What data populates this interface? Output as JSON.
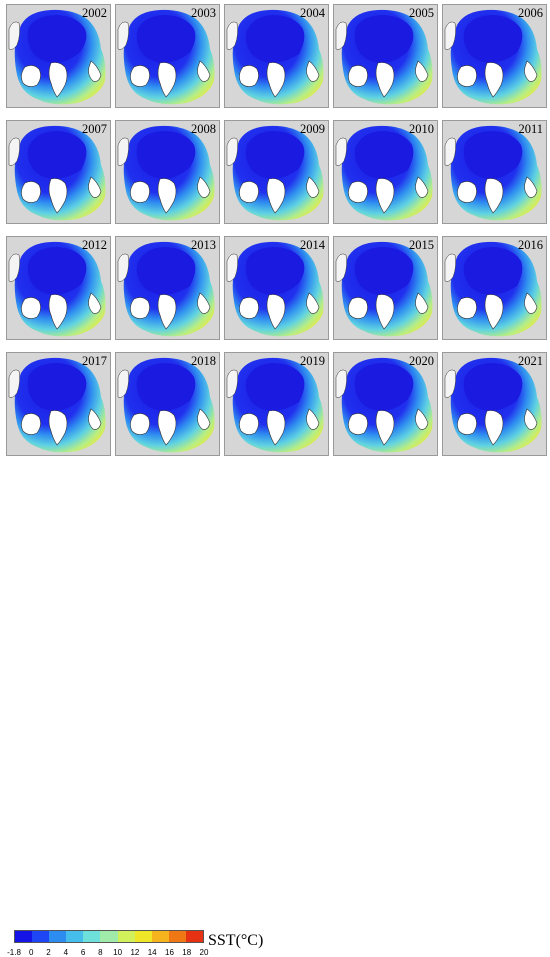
{
  "panels": [
    {
      "year": "2002"
    },
    {
      "year": "2003"
    },
    {
      "year": "2004"
    },
    {
      "year": "2005"
    },
    {
      "year": "2006"
    },
    {
      "year": "2007"
    },
    {
      "year": "2008"
    },
    {
      "year": "2009"
    },
    {
      "year": "2010"
    },
    {
      "year": "2011"
    },
    {
      "year": "2012"
    },
    {
      "year": "2013"
    },
    {
      "year": "2014"
    },
    {
      "year": "2015"
    },
    {
      "year": "2016"
    },
    {
      "year": "2017"
    },
    {
      "year": "2018"
    },
    {
      "year": "2019"
    },
    {
      "year": "2020"
    },
    {
      "year": "2021"
    }
  ],
  "legend": {
    "label": "SST(°C)",
    "ticks": [
      "-1.8",
      "0",
      "2",
      "4",
      "6",
      "8",
      "10",
      "12",
      "14",
      "16",
      "18",
      "20"
    ],
    "colors": [
      "#1414e6",
      "#1e46f5",
      "#2d8cf0",
      "#46beeb",
      "#6ee0dc",
      "#a0ebaa",
      "#d2f05a",
      "#f0e628",
      "#f5b41e",
      "#f07814",
      "#e63212"
    ]
  },
  "colors": {
    "land": "#d6d6d6",
    "ice": "#1a1ae0",
    "coast": "#333333"
  }
}
